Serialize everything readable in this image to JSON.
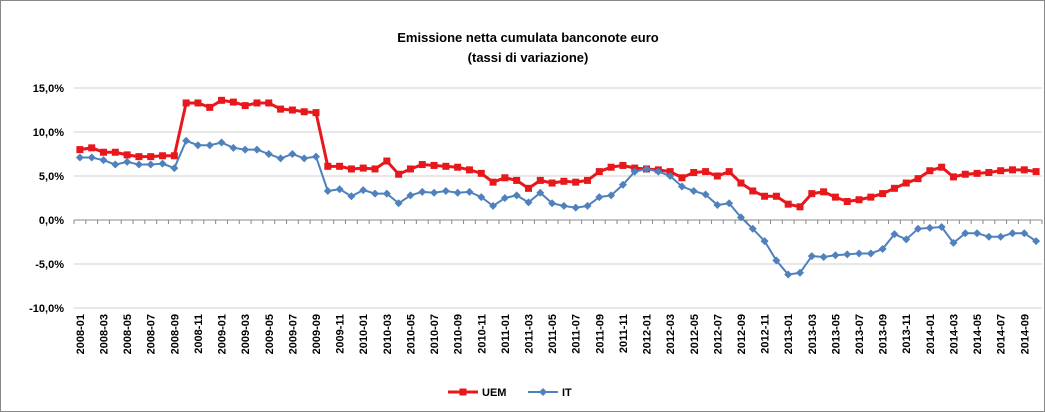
{
  "chart_data": {
    "type": "line",
    "title": "Emissione netta cumulata banconote euro",
    "subtitle": "(tassi di variazione)",
    "categories": [
      "2008-01",
      null,
      "2008-03",
      null,
      "2008-05",
      null,
      "2008-07",
      null,
      "2008-09",
      null,
      "2008-11",
      null,
      "2009-01",
      null,
      "2009-03",
      null,
      "2009-05",
      null,
      "2009-07",
      null,
      "2009-09",
      null,
      "2009-11",
      null,
      "2010-01",
      null,
      "2010-03",
      null,
      "2010-05",
      null,
      "2010-07",
      null,
      "2010-09",
      null,
      "2010-11",
      null,
      "2011-01",
      null,
      "2011-03",
      null,
      "2011-05",
      null,
      "2011-07",
      null,
      "2011-09",
      null,
      "2011-11",
      null,
      "2012-01",
      null,
      "2012-03",
      null,
      "2012-05",
      null,
      "2012-07",
      null,
      "2012-09",
      null,
      "2012-11",
      null,
      "2013-01",
      null,
      "2013-03",
      null,
      "2013-05",
      null,
      "2013-07",
      null,
      "2013-09",
      null,
      "2013-11",
      null,
      "2014-01",
      null,
      "2014-03",
      null,
      "2014-05",
      null,
      "2014-07",
      null,
      "2014-09",
      null
    ],
    "series": [
      {
        "name": "UEM",
        "color": "#e8171b",
        "marker": "square",
        "values": [
          8.0,
          8.2,
          7.7,
          7.7,
          7.4,
          7.2,
          7.2,
          7.3,
          7.3,
          13.3,
          13.3,
          12.8,
          13.6,
          13.4,
          13.0,
          13.3,
          13.3,
          12.6,
          12.5,
          12.3,
          12.2,
          6.1,
          6.1,
          5.8,
          5.9,
          5.8,
          6.7,
          5.2,
          5.8,
          6.3,
          6.2,
          6.1,
          6.0,
          5.7,
          5.3,
          4.3,
          4.8,
          4.5,
          3.6,
          4.5,
          4.2,
          4.4,
          4.3,
          4.5,
          5.5,
          6.0,
          6.2,
          5.9,
          5.8,
          5.7,
          5.5,
          4.8,
          5.4,
          5.5,
          5.0,
          5.5,
          4.2,
          3.3,
          2.7,
          2.7,
          1.8,
          1.5,
          3.0,
          3.2,
          2.6,
          2.1,
          2.3,
          2.6,
          3.0,
          3.6,
          4.2,
          4.7,
          5.6,
          6.0,
          4.9,
          5.2,
          5.3,
          5.4,
          5.6,
          5.7,
          5.7,
          5.5
        ]
      },
      {
        "name": "IT",
        "color": "#4f81bd",
        "marker": "diamond",
        "values": [
          7.1,
          7.1,
          6.8,
          6.3,
          6.6,
          6.3,
          6.3,
          6.4,
          5.9,
          9.0,
          8.5,
          8.5,
          8.8,
          8.2,
          8.0,
          8.0,
          7.5,
          7.0,
          7.5,
          7.0,
          7.2,
          3.3,
          3.5,
          2.7,
          3.4,
          3.0,
          3.0,
          1.9,
          2.8,
          3.2,
          3.1,
          3.3,
          3.1,
          3.2,
          2.6,
          1.6,
          2.5,
          2.8,
          2.0,
          3.1,
          1.9,
          1.6,
          1.4,
          1.6,
          2.6,
          2.8,
          4.0,
          5.5,
          5.8,
          5.5,
          5.0,
          3.8,
          3.3,
          2.9,
          1.7,
          1.9,
          0.3,
          -1.0,
          -2.4,
          -4.6,
          -6.2,
          -6.0,
          -4.1,
          -4.2,
          -4.0,
          -3.9,
          -3.8,
          -3.8,
          -3.3,
          -1.6,
          -2.2,
          -1.0,
          -0.9,
          -0.8,
          -2.6,
          -1.5,
          -1.5,
          -1.9,
          -1.9,
          -1.5,
          -1.5,
          -2.4
        ]
      }
    ],
    "ylim": [
      -10,
      15
    ],
    "yticks": [
      {
        "value": -10,
        "label": "-10,0%"
      },
      {
        "value": -5,
        "label": "-5,0%"
      },
      {
        "value": 0,
        "label": "0,0%"
      },
      {
        "value": 5,
        "label": "5,0%"
      },
      {
        "value": 10,
        "label": "10,0%"
      },
      {
        "value": 15,
        "label": "15,0%"
      }
    ],
    "grid": true,
    "legend": "bottom"
  }
}
